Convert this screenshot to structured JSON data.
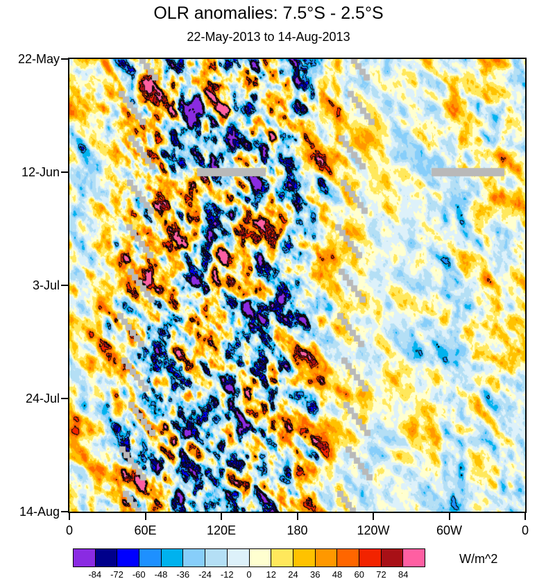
{
  "title": "OLR anomalies: 7.5°S - 2.5°S",
  "subtitle": "22-May-2013 to 14-Aug-2013",
  "chart_data": {
    "type": "heatmap",
    "title": "OLR anomalies: 7.5°S - 2.5°S",
    "subtitle": "22-May-2013 to 14-Aug-2013",
    "description": "Time-longitude (Hovmoller) diagram of OLR anomalies averaged 7.5S-2.5S; time increases downward, grey = missing data",
    "units": "W/m^2",
    "x_axis": {
      "label": "longitude",
      "tick_labels": [
        "0",
        "60E",
        "120E",
        "180",
        "120W",
        "60W",
        "0"
      ],
      "range_deg": [
        0,
        360
      ]
    },
    "y_axis": {
      "label": "time",
      "tick_labels": [
        "22-May",
        "12-Jun",
        "3-Jul",
        "24-Jul",
        "14-Aug"
      ],
      "start": "22-May-2013",
      "end": "14-Aug-2013",
      "tick_interval_days": 21,
      "orientation": "top-to-bottom"
    },
    "colorbar": {
      "label": "W/m^2",
      "levels": [
        -84,
        -72,
        -60,
        -48,
        -36,
        -24,
        -12,
        0,
        12,
        24,
        36,
        48,
        60,
        72,
        84
      ],
      "colors": [
        "#8a2be2",
        "#00008b",
        "#0000ff",
        "#1e90ff",
        "#00b2ee",
        "#87cefa",
        "#b4dff5",
        "#ddf1fa",
        "#ffffd0",
        "#ffe85c",
        "#ffc200",
        "#ff9800",
        "#ff6600",
        "#f22300",
        "#a81016",
        "#ff5fa2"
      ]
    },
    "missing_data_color": "#b9b9b9",
    "approx_values": {
      "note": "coarse visual estimates of OLR anomaly (W/m^2) on a 30-degree by 12-day grid; rows = days since 22-May-2013",
      "lon_deg": [
        0,
        30,
        60,
        90,
        120,
        150,
        180,
        210,
        240,
        270,
        300,
        330
      ],
      "day_offsets": [
        0,
        12,
        24,
        36,
        48,
        60,
        72,
        84
      ],
      "grid": [
        [
          8,
          30,
          45,
          -40,
          -55,
          20,
          -35,
          10,
          5,
          -10,
          -45,
          25
        ],
        [
          5,
          -15,
          40,
          25,
          -50,
          -20,
          30,
          12,
          4,
          -8,
          -30,
          10
        ],
        [
          6,
          15,
          35,
          -30,
          -60,
          35,
          -25,
          10,
          6,
          -6,
          -20,
          8
        ],
        [
          8,
          20,
          50,
          30,
          -70,
          -40,
          40,
          8,
          4,
          -8,
          -25,
          5
        ],
        [
          5,
          10,
          -20,
          40,
          -65,
          30,
          45,
          12,
          2,
          -10,
          -30,
          5
        ],
        [
          6,
          25,
          35,
          -50,
          -30,
          40,
          -45,
          15,
          5,
          -8,
          -20,
          6
        ],
        [
          8,
          20,
          30,
          -40,
          20,
          -55,
          50,
          10,
          4,
          -6,
          -15,
          8
        ],
        [
          10,
          15,
          -25,
          -35,
          30,
          -45,
          55,
          12,
          5,
          -10,
          -12,
          10
        ]
      ]
    }
  }
}
